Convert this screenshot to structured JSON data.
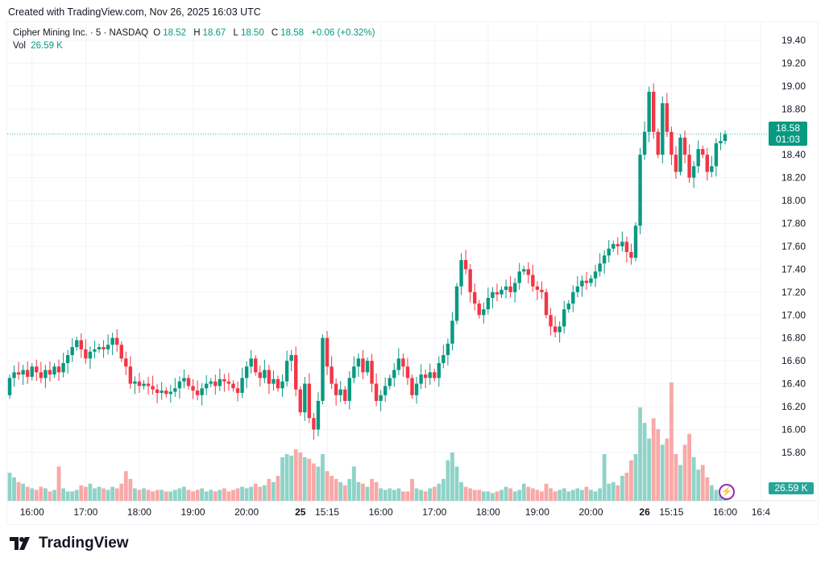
{
  "created": "Created with TradingView.com, Nov 26, 2025 16:03 UTC",
  "legend": {
    "symbol": "Cipher Mining Inc. · 5 · NASDAQ",
    "o_label": "O",
    "o": "18.52",
    "h_label": "H",
    "h": "18.67",
    "l_label": "L",
    "l": "18.50",
    "c_label": "C",
    "c": "18.58",
    "change": "+0.06 (+0.32%)",
    "vol_label": "Vol",
    "vol": "26.59 K"
  },
  "last_price": {
    "price": "18.58",
    "countdown": "01:03"
  },
  "last_volume": "26.59 K",
  "logo_text": "TradingView",
  "colors": {
    "up": "#089981",
    "down": "#f23645",
    "up_vol": "#8fd3c8",
    "down_vol": "#f8a9a7"
  },
  "chart_data": {
    "type": "candlestick",
    "title": "Cipher Mining Inc. · 5 · NASDAQ",
    "ylim": [
      15.7,
      19.5
    ],
    "y_ticks": [
      "19.40",
      "19.20",
      "19.00",
      "18.80",
      "18.40",
      "18.20",
      "18.00",
      "17.80",
      "17.60",
      "17.40",
      "17.20",
      "17.00",
      "16.80",
      "16.60",
      "16.40",
      "16.20",
      "16.00",
      "15.80"
    ],
    "x_ticks": [
      {
        "label": "16:00",
        "bar": 5
      },
      {
        "label": "17:00",
        "bar": 17
      },
      {
        "label": "18:00",
        "bar": 29
      },
      {
        "label": "19:00",
        "bar": 41
      },
      {
        "label": "20:00",
        "bar": 53
      },
      {
        "label": "25",
        "bar": 65,
        "bold": true
      },
      {
        "label": "15:15",
        "bar": 71
      },
      {
        "label": "16:00",
        "bar": 83
      },
      {
        "label": "17:00",
        "bar": 95
      },
      {
        "label": "18:00",
        "bar": 107
      },
      {
        "label": "19:00",
        "bar": 118
      },
      {
        "label": "20:00",
        "bar": 130
      },
      {
        "label": "26",
        "bar": 142,
        "bold": true
      },
      {
        "label": "15:15",
        "bar": 148
      },
      {
        "label": "16:00",
        "bar": 160
      },
      {
        "label": "16:4",
        "bar": 168
      }
    ],
    "first_open": 16.3,
    "close": [
      16.45,
      16.5,
      16.48,
      16.52,
      16.46,
      16.55,
      16.5,
      16.45,
      16.52,
      16.48,
      16.55,
      16.5,
      16.58,
      16.65,
      16.72,
      16.78,
      16.7,
      16.62,
      16.68,
      16.7,
      16.72,
      16.7,
      16.74,
      16.8,
      16.74,
      16.62,
      16.55,
      16.4,
      16.42,
      16.38,
      16.4,
      16.38,
      16.35,
      16.32,
      16.34,
      16.31,
      16.33,
      16.36,
      16.42,
      16.45,
      16.38,
      16.34,
      16.3,
      16.36,
      16.4,
      16.42,
      16.38,
      16.44,
      16.42,
      16.4,
      16.36,
      16.32,
      16.45,
      16.55,
      16.62,
      16.5,
      16.45,
      16.52,
      16.4,
      16.44,
      16.36,
      16.42,
      16.6,
      16.65,
      16.35,
      16.15,
      16.4,
      16.1,
      16.0,
      16.25,
      16.8,
      16.55,
      16.4,
      16.3,
      16.35,
      16.25,
      16.45,
      16.55,
      16.62,
      16.5,
      16.6,
      16.4,
      16.25,
      16.3,
      16.38,
      16.45,
      16.52,
      16.62,
      16.55,
      16.45,
      16.3,
      16.4,
      16.48,
      16.45,
      16.5,
      16.45,
      16.58,
      16.65,
      16.75,
      16.95,
      17.25,
      17.48,
      17.4,
      17.2,
      17.1,
      17.0,
      17.05,
      17.15,
      17.2,
      17.18,
      17.22,
      17.25,
      17.2,
      17.28,
      17.38,
      17.4,
      17.35,
      17.25,
      17.22,
      17.2,
      17.0,
      16.9,
      16.85,
      16.9,
      17.05,
      17.1,
      17.2,
      17.25,
      17.3,
      17.28,
      17.32,
      17.38,
      17.45,
      17.52,
      17.58,
      17.62,
      17.6,
      17.64,
      17.55,
      17.5,
      17.78,
      18.4,
      18.6,
      18.95,
      18.6,
      18.4,
      18.85,
      18.6,
      18.4,
      18.25,
      18.55,
      18.4,
      18.2,
      18.3,
      18.45,
      18.4,
      18.25,
      18.3,
      18.5,
      18.52,
      18.58
    ],
    "volume_k": [
      90,
      75,
      60,
      55,
      45,
      40,
      35,
      45,
      40,
      30,
      35,
      110,
      40,
      30,
      30,
      35,
      50,
      45,
      55,
      40,
      45,
      40,
      35,
      45,
      40,
      55,
      95,
      70,
      40,
      35,
      40,
      35,
      30,
      35,
      35,
      30,
      30,
      35,
      40,
      45,
      35,
      30,
      35,
      40,
      30,
      35,
      30,
      35,
      40,
      30,
      35,
      40,
      45,
      40,
      45,
      55,
      45,
      50,
      70,
      60,
      80,
      140,
      150,
      145,
      165,
      155,
      140,
      135,
      120,
      110,
      150,
      95,
      80,
      70,
      60,
      50,
      70,
      110,
      60,
      55,
      45,
      70,
      60,
      40,
      35,
      40,
      35,
      40,
      30,
      30,
      70,
      40,
      35,
      30,
      40,
      45,
      55,
      70,
      130,
      155,
      110,
      60,
      45,
      40,
      35,
      35,
      30,
      30,
      25,
      30,
      35,
      45,
      40,
      30,
      35,
      55,
      45,
      40,
      35,
      30,
      55,
      40,
      30,
      35,
      40,
      30,
      35,
      40,
      35,
      45,
      35,
      30,
      40,
      150,
      55,
      60,
      50,
      80,
      90,
      130,
      150,
      300,
      250,
      200,
      265,
      230,
      180,
      200,
      380,
      150,
      115,
      180,
      215,
      140,
      100,
      115,
      75,
      50,
      35,
      25,
      26.59
    ]
  }
}
